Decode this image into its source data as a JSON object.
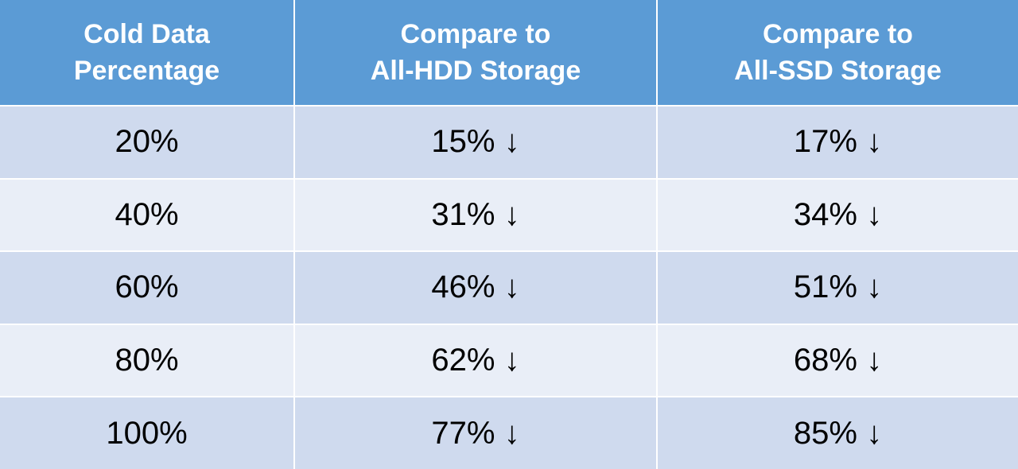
{
  "table": {
    "header": [
      "Cold Data\nPercentage",
      "Compare to\nAll-HDD Storage",
      "Compare to\nAll-SSD Storage"
    ],
    "rows": [
      [
        "20%",
        "15% ↓",
        "17% ↓"
      ],
      [
        "40%",
        "31% ↓",
        "34% ↓"
      ],
      [
        "60%",
        "46% ↓",
        "51% ↓"
      ],
      [
        "80%",
        "62% ↓",
        "68% ↓"
      ],
      [
        "100%",
        "77% ↓",
        "85% ↓"
      ]
    ]
  }
}
